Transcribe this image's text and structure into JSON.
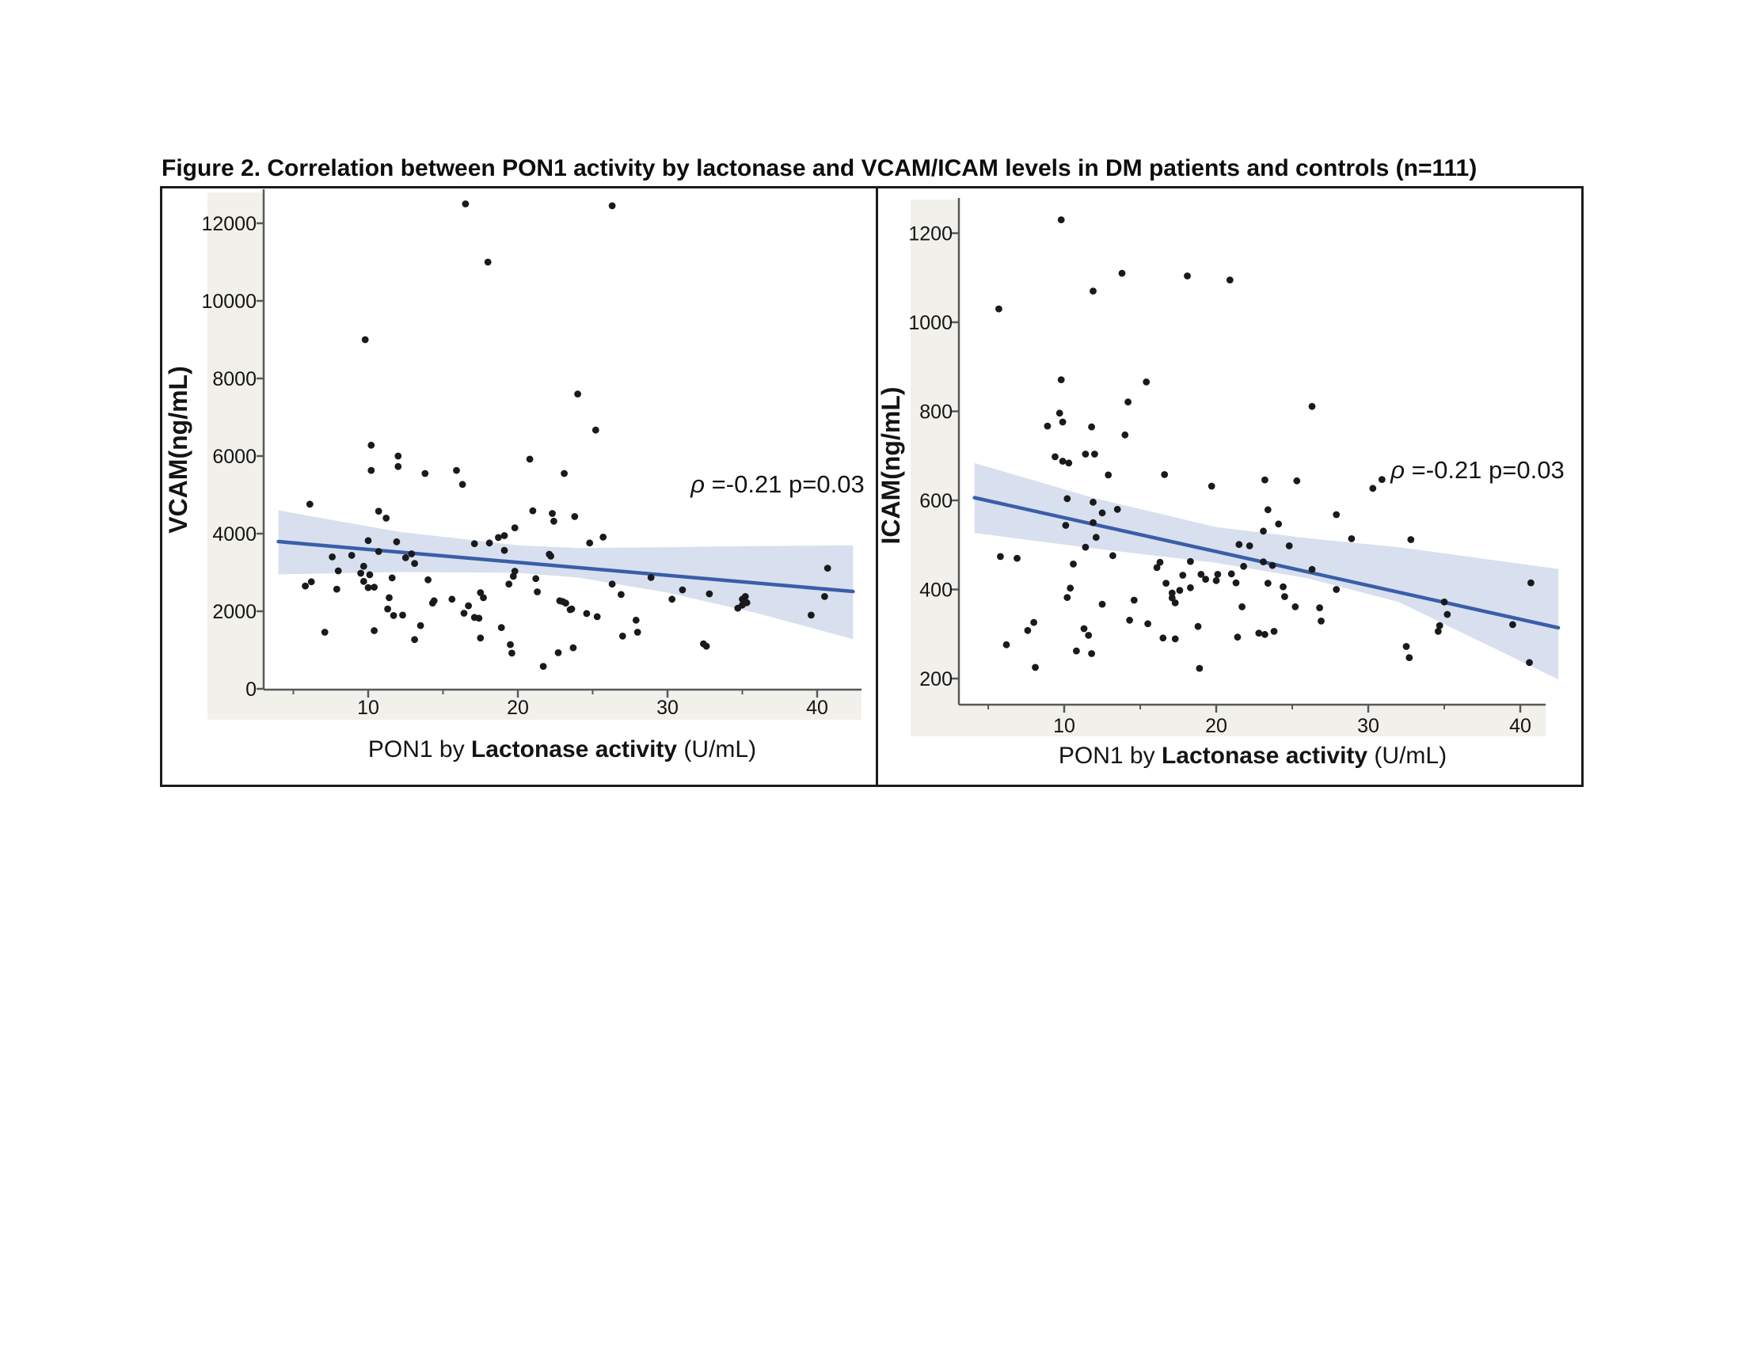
{
  "title": "Figure 2. Correlation between PON1 activity by lactonase and VCAM/ICAM levels in DM patients and controls (n=111)",
  "colors": {
    "band": "#d8dfef",
    "line": "#3a5ea8",
    "point": "#1a1a1c",
    "panel_gray": "#f1f0ea",
    "axis": "#58595b",
    "text": "#141414"
  },
  "chart_data": [
    {
      "type": "scatter",
      "panel": "left",
      "ylabel": "VCAM(ng/mL)",
      "xlabel_parts": [
        {
          "text": "PON1 by ",
          "bold": false
        },
        {
          "text": "Lactonase activity",
          "bold": true
        },
        {
          "text": " (U/mL)",
          "bold": false
        }
      ],
      "annotation": {
        "rho": "ρ",
        "text": "=-0.21 p=0.03"
      },
      "xlim": [
        3,
        43
      ],
      "ylim": [
        0,
        12880
      ],
      "grid": false,
      "legend": "none",
      "xticks_major": [
        10,
        20,
        30,
        40
      ],
      "xticks_minor": [
        5,
        15,
        25,
        35
      ],
      "yticks": [
        0,
        2000,
        4000,
        6000,
        8000,
        10000,
        12000
      ],
      "regression_line": {
        "x": [
          4.0,
          42.4
        ],
        "y": [
          3795,
          2510
        ]
      },
      "confidence_band": {
        "top": [
          [
            4,
            4600
          ],
          [
            12,
            4050
          ],
          [
            20,
            3700
          ],
          [
            24,
            3630
          ],
          [
            30,
            3650
          ],
          [
            36,
            3680
          ],
          [
            42.4,
            3700
          ]
        ],
        "bottom": [
          [
            4,
            2950
          ],
          [
            12,
            3010
          ],
          [
            20,
            2990
          ],
          [
            24,
            2870
          ],
          [
            30,
            2480
          ],
          [
            36,
            1950
          ],
          [
            42.4,
            1280
          ]
        ]
      },
      "points": [
        [
          16.5,
          12500
        ],
        [
          26.3,
          12450
        ],
        [
          18.0,
          11000
        ],
        [
          9.8,
          9000
        ],
        [
          24.0,
          7600
        ],
        [
          25.2,
          6670
        ],
        [
          10.2,
          6280
        ],
        [
          12.0,
          6000
        ],
        [
          12.0,
          5730
        ],
        [
          10.2,
          5630
        ],
        [
          13.8,
          5550
        ],
        [
          15.9,
          5630
        ],
        [
          16.3,
          5270
        ],
        [
          20.8,
          5920
        ],
        [
          23.1,
          5550
        ],
        [
          6.1,
          4760
        ],
        [
          11.2,
          4400
        ],
        [
          10.7,
          4580
        ],
        [
          21.0,
          4590
        ],
        [
          22.3,
          4520
        ],
        [
          22.4,
          4320
        ],
        [
          23.8,
          4440
        ],
        [
          19.8,
          4150
        ],
        [
          10.0,
          3820
        ],
        [
          11.9,
          3790
        ],
        [
          10.7,
          3540
        ],
        [
          7.6,
          3400
        ],
        [
          8.9,
          3440
        ],
        [
          12.5,
          3380
        ],
        [
          12.9,
          3480
        ],
        [
          13.1,
          3230
        ],
        [
          8.0,
          3040
        ],
        [
          9.5,
          2980
        ],
        [
          9.7,
          3160
        ],
        [
          10.1,
          2940
        ],
        [
          9.7,
          2770
        ],
        [
          10.0,
          2610
        ],
        [
          10.4,
          2620
        ],
        [
          5.8,
          2650
        ],
        [
          6.2,
          2760
        ],
        [
          7.9,
          2570
        ],
        [
          11.6,
          2860
        ],
        [
          14.0,
          2810
        ],
        [
          11.4,
          2350
        ],
        [
          11.3,
          2060
        ],
        [
          11.7,
          1890
        ],
        [
          12.3,
          1900
        ],
        [
          14.3,
          2210
        ],
        [
          14.4,
          2270
        ],
        [
          15.6,
          2310
        ],
        [
          16.7,
          2140
        ],
        [
          16.4,
          1950
        ],
        [
          17.1,
          1840
        ],
        [
          17.4,
          1820
        ],
        [
          17.5,
          2480
        ],
        [
          17.7,
          2350
        ],
        [
          17.1,
          3740
        ],
        [
          18.1,
          3760
        ],
        [
          18.7,
          3900
        ],
        [
          19.1,
          3950
        ],
        [
          19.1,
          3570
        ],
        [
          22.1,
          3470
        ],
        [
          13.5,
          1630
        ],
        [
          10.4,
          1500
        ],
        [
          7.1,
          1460
        ],
        [
          13.1,
          1270
        ],
        [
          17.5,
          1310
        ],
        [
          18.9,
          1580
        ],
        [
          19.5,
          1140
        ],
        [
          19.6,
          920
        ],
        [
          21.3,
          2500
        ],
        [
          21.2,
          2840
        ],
        [
          19.7,
          2900
        ],
        [
          19.8,
          3030
        ],
        [
          19.4,
          2700
        ],
        [
          21.7,
          580
        ],
        [
          22.7,
          930
        ],
        [
          22.8,
          2270
        ],
        [
          23.2,
          2210
        ],
        [
          23.6,
          2060
        ],
        [
          23.7,
          1060
        ],
        [
          24.8,
          3760
        ],
        [
          25.7,
          3910
        ],
        [
          22.2,
          3420
        ],
        [
          28.9,
          2870
        ],
        [
          26.3,
          2700
        ],
        [
          26.9,
          2430
        ],
        [
          31.0,
          2550
        ],
        [
          30.3,
          2310
        ],
        [
          32.8,
          2450
        ],
        [
          35.0,
          2310
        ],
        [
          35.2,
          2380
        ],
        [
          35.0,
          2160
        ],
        [
          34.7,
          2080
        ],
        [
          35.3,
          2220
        ],
        [
          23.0,
          2250
        ],
        [
          23.5,
          2040
        ],
        [
          24.6,
          1940
        ],
        [
          25.3,
          1860
        ],
        [
          27.9,
          1770
        ],
        [
          28.0,
          1460
        ],
        [
          27.0,
          1360
        ],
        [
          32.4,
          1160
        ],
        [
          32.6,
          1100
        ],
        [
          40.7,
          3110
        ],
        [
          40.5,
          2380
        ],
        [
          39.6,
          1900
        ]
      ]
    },
    {
      "type": "scatter",
      "panel": "right",
      "ylabel": "ICAM(ng/mL)",
      "xlabel_parts": [
        {
          "text": "PON1 by ",
          "bold": false
        },
        {
          "text": "Lactonase activity",
          "bold": true
        },
        {
          "text": " (U/mL)",
          "bold": false
        }
      ],
      "annotation": {
        "rho": "ρ",
        "text": "=-0.21  p=0.03"
      },
      "xlim": [
        3,
        42.5
      ],
      "ylim": [
        140,
        1280
      ],
      "grid": false,
      "legend": "none",
      "xticks_major": [
        10,
        20,
        30,
        40
      ],
      "xticks_minor": [
        5,
        15,
        25,
        35
      ],
      "yticks": [
        200,
        400,
        600,
        800,
        1000,
        1200
      ],
      "regression_line": {
        "x": [
          4.1,
          42.5
        ],
        "y": [
          606,
          314
        ]
      },
      "confidence_band": {
        "top": [
          [
            4.1,
            684
          ],
          [
            12,
            605
          ],
          [
            20,
            540
          ],
          [
            26,
            515
          ],
          [
            32,
            495
          ],
          [
            42.5,
            446
          ]
        ],
        "bottom": [
          [
            4.1,
            527
          ],
          [
            12,
            492
          ],
          [
            20,
            460
          ],
          [
            26,
            425
          ],
          [
            32,
            372
          ],
          [
            42.5,
            198
          ]
        ]
      },
      "points": [
        [
          9.8,
          1230
        ],
        [
          5.7,
          1030
        ],
        [
          13.8,
          1110
        ],
        [
          11.9,
          1070
        ],
        [
          18.1,
          1104
        ],
        [
          20.9,
          1095
        ],
        [
          9.8,
          871
        ],
        [
          15.4,
          866
        ],
        [
          14.2,
          821
        ],
        [
          9.7,
          796
        ],
        [
          9.9,
          776
        ],
        [
          8.9,
          767
        ],
        [
          11.8,
          765
        ],
        [
          14.0,
          747
        ],
        [
          9.4,
          698
        ],
        [
          9.9,
          688
        ],
        [
          11.4,
          704
        ],
        [
          12.0,
          704
        ],
        [
          10.3,
          684
        ],
        [
          12.9,
          657
        ],
        [
          16.6,
          658
        ],
        [
          19.7,
          632
        ],
        [
          10.2,
          604
        ],
        [
          11.9,
          596
        ],
        [
          12.5,
          572
        ],
        [
          13.5,
          580
        ],
        [
          11.9,
          550
        ],
        [
          10.1,
          544
        ],
        [
          12.1,
          517
        ],
        [
          11.4,
          495
        ],
        [
          5.8,
          474
        ],
        [
          6.9,
          470
        ],
        [
          18.3,
          463
        ],
        [
          26.3,
          811
        ],
        [
          23.2,
          646
        ],
        [
          25.3,
          644
        ],
        [
          23.4,
          579
        ],
        [
          24.1,
          547
        ],
        [
          23.1,
          531
        ],
        [
          21.5,
          501
        ],
        [
          22.2,
          498
        ],
        [
          24.8,
          498
        ],
        [
          10.6,
          457
        ],
        [
          13.2,
          476
        ],
        [
          16.1,
          449
        ],
        [
          16.3,
          461
        ],
        [
          17.8,
          432
        ],
        [
          19.0,
          434
        ],
        [
          20.1,
          434
        ],
        [
          21.0,
          435
        ],
        [
          21.8,
          452
        ],
        [
          23.1,
          462
        ],
        [
          23.7,
          454
        ],
        [
          16.7,
          414
        ],
        [
          17.1,
          392
        ],
        [
          17.3,
          370
        ],
        [
          17.1,
          381
        ],
        [
          17.6,
          398
        ],
        [
          18.3,
          404
        ],
        [
          19.3,
          423
        ],
        [
          20.0,
          420
        ],
        [
          10.4,
          403
        ],
        [
          10.2,
          382
        ],
        [
          12.5,
          367
        ],
        [
          14.6,
          376
        ],
        [
          21.3,
          415
        ],
        [
          21.7,
          361
        ],
        [
          23.4,
          414
        ],
        [
          24.4,
          406
        ],
        [
          24.5,
          384
        ],
        [
          25.2,
          361
        ],
        [
          14.3,
          331
        ],
        [
          15.5,
          323
        ],
        [
          18.8,
          317
        ],
        [
          11.3,
          312
        ],
        [
          11.6,
          297
        ],
        [
          8.0,
          326
        ],
        [
          7.6,
          308
        ],
        [
          6.2,
          276
        ],
        [
          10.8,
          262
        ],
        [
          11.8,
          256
        ],
        [
          8.1,
          225
        ],
        [
          18.9,
          223
        ],
        [
          16.5,
          291
        ],
        [
          17.3,
          289
        ],
        [
          21.4,
          293
        ],
        [
          22.8,
          302
        ],
        [
          23.2,
          299
        ],
        [
          23.8,
          306
        ],
        [
          30.9,
          647
        ],
        [
          30.3,
          627
        ],
        [
          27.9,
          568
        ],
        [
          28.9,
          514
        ],
        [
          32.8,
          512
        ],
        [
          26.3,
          445
        ],
        [
          27.9,
          400
        ],
        [
          26.8,
          359
        ],
        [
          26.9,
          329
        ],
        [
          35.0,
          372
        ],
        [
          35.2,
          344
        ],
        [
          34.7,
          319
        ],
        [
          34.6,
          306
        ],
        [
          32.5,
          272
        ],
        [
          32.7,
          247
        ],
        [
          40.7,
          415
        ],
        [
          39.5,
          321
        ],
        [
          40.6,
          236
        ]
      ]
    }
  ]
}
